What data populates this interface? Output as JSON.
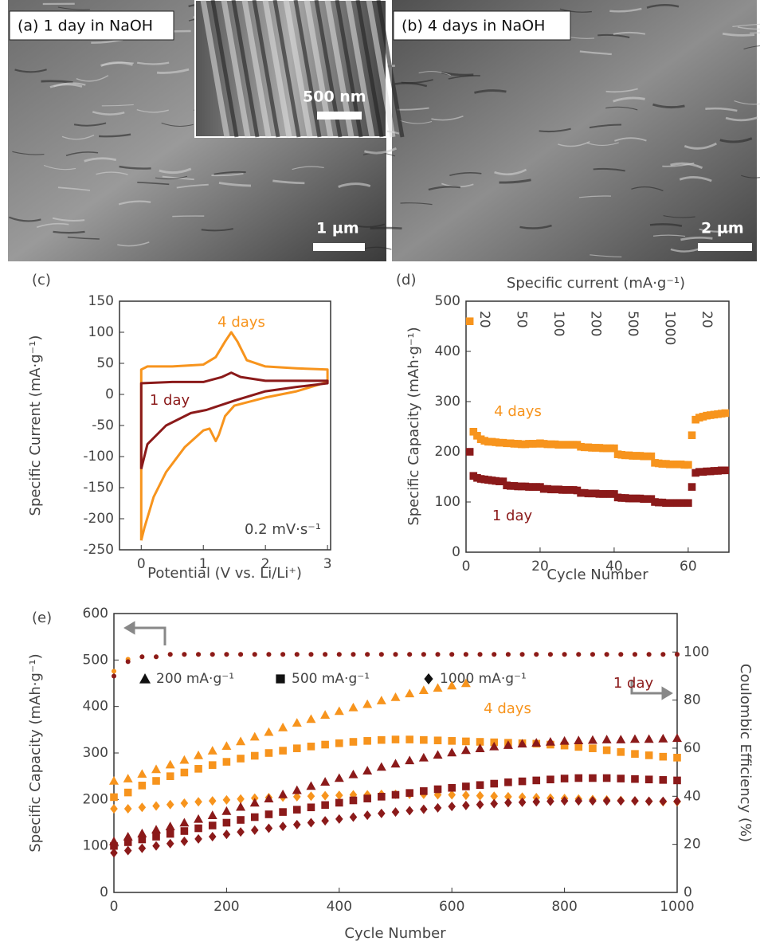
{
  "images": {
    "a": {
      "label": "(a) 1 day in NaOH",
      "scale": "1 µm",
      "inset_scale": "500 nm"
    },
    "b": {
      "label": "(b) 4 days in NaOH",
      "scale": "2 µm"
    }
  },
  "chart_data": [
    {
      "type": "line",
      "title": "(c)",
      "xlabel": "Potential (V vs. Li/Li⁺)",
      "ylabel": "Specific Current (mA·g⁻¹)",
      "xlim": [
        -0.35,
        3.05
      ],
      "xticks": [
        0,
        1,
        2,
        3
      ],
      "ylim": [
        -250,
        150
      ],
      "yticks": [
        -250,
        -200,
        -150,
        -100,
        -50,
        0,
        50,
        100,
        150
      ],
      "annotations": [
        {
          "text": "4 days",
          "color": "#f7941d"
        },
        {
          "text": "1 day",
          "color": "#8b1a1a"
        },
        {
          "text": "0.2 mV·s⁻¹",
          "color": "#444444"
        }
      ],
      "series": [
        {
          "color": "#f7941d",
          "x": [
            0,
            0,
            0.1,
            0.5,
            1.0,
            1.2,
            1.35,
            1.45,
            1.55,
            1.7,
            2.0,
            2.5,
            3.0,
            3.0,
            2.5,
            2.0,
            1.5,
            1.35,
            1.25,
            1.2,
            1.1,
            1.0,
            0.7,
            0.4,
            0.2,
            0.05,
            0
          ],
          "values": [
            -235,
            40,
            45,
            45,
            48,
            60,
            85,
            100,
            85,
            55,
            45,
            42,
            40,
            20,
            5,
            -5,
            -18,
            -35,
            -65,
            -75,
            -55,
            -58,
            -85,
            -125,
            -165,
            -215,
            -235
          ]
        },
        {
          "color": "#8b1a1a",
          "x": [
            0,
            0,
            0.5,
            1.0,
            1.3,
            1.45,
            1.6,
            2.0,
            3.0,
            3.0,
            2.5,
            2.0,
            1.5,
            1.2,
            1.05,
            0.8,
            0.4,
            0.1,
            0
          ],
          "values": [
            -120,
            18,
            20,
            20,
            28,
            35,
            28,
            22,
            22,
            18,
            12,
            5,
            -10,
            -20,
            -25,
            -30,
            -50,
            -80,
            -120
          ]
        }
      ]
    },
    {
      "type": "scatter",
      "title": "(d)",
      "xlabel": "Cycle Number",
      "ylabel": "Specific Capacity (mAh·g⁻¹)",
      "top_label": "Specific current (mA·g⁻¹)",
      "rate_labels": [
        "20",
        "50",
        "100",
        "200",
        "500",
        "1000",
        "20"
      ],
      "xlim": [
        0,
        71
      ],
      "xticks": [
        0,
        20,
        40,
        60
      ],
      "ylim": [
        0,
        500
      ],
      "yticks": [
        0,
        100,
        200,
        300,
        400,
        500
      ],
      "annotations": [
        {
          "text": "4 days",
          "color": "#f7941d"
        },
        {
          "text": "1 day",
          "color": "#8b1a1a"
        }
      ],
      "x": [
        1,
        2,
        3,
        4,
        5,
        6,
        7,
        8,
        9,
        10,
        11,
        12,
        13,
        14,
        15,
        16,
        17,
        18,
        19,
        20,
        21,
        22,
        23,
        24,
        25,
        26,
        27,
        28,
        29,
        30,
        31,
        32,
        33,
        34,
        35,
        36,
        37,
        38,
        39,
        40,
        41,
        42,
        43,
        44,
        45,
        46,
        47,
        48,
        49,
        50,
        51,
        52,
        53,
        54,
        55,
        56,
        57,
        58,
        59,
        60,
        61,
        62,
        63,
        64,
        65,
        66,
        67,
        68,
        69,
        70
      ],
      "series": [
        {
          "color": "#f7941d",
          "marker": "square",
          "values": [
            460,
            240,
            232,
            225,
            222,
            220,
            220,
            219,
            218,
            218,
            217,
            217,
            216,
            216,
            215,
            215,
            216,
            216,
            216,
            217,
            216,
            215,
            215,
            215,
            214,
            214,
            214,
            214,
            214,
            214,
            210,
            209,
            209,
            208,
            208,
            208,
            207,
            207,
            207,
            207,
            195,
            194,
            193,
            193,
            192,
            192,
            192,
            191,
            191,
            191,
            178,
            177,
            176,
            176,
            175,
            175,
            175,
            175,
            174,
            174,
            233,
            264,
            268,
            270,
            272,
            273,
            274,
            275,
            276,
            277
          ]
        },
        {
          "color": "#8b1a1a",
          "marker": "square",
          "values": [
            200,
            152,
            148,
            146,
            145,
            144,
            143,
            142,
            141,
            141,
            133,
            132,
            132,
            131,
            131,
            131,
            130,
            130,
            130,
            130,
            126,
            126,
            125,
            125,
            125,
            124,
            124,
            124,
            124,
            123,
            118,
            118,
            117,
            117,
            117,
            116,
            116,
            116,
            116,
            116,
            109,
            108,
            108,
            107,
            107,
            107,
            107,
            106,
            106,
            106,
            100,
            99,
            99,
            98,
            98,
            98,
            98,
            98,
            98,
            98,
            130,
            158,
            160,
            160,
            161,
            161,
            162,
            162,
            163,
            163
          ]
        }
      ]
    },
    {
      "type": "scatter",
      "title": "(e)",
      "xlabel": "Cycle Number",
      "ylabel": "Specific Capacity (mAh·g⁻¹)",
      "y2label": "Coulombic Efficiency (%)",
      "xlim": [
        0,
        1000
      ],
      "xticks": [
        0,
        200,
        400,
        600,
        800,
        1000
      ],
      "ylim": [
        0,
        600
      ],
      "yticks": [
        0,
        100,
        200,
        300,
        400,
        500,
        600
      ],
      "y2lim": [
        0,
        116
      ],
      "y2ticks": [
        0,
        20,
        40,
        60,
        80,
        100
      ],
      "annotations": [
        {
          "text": "4 days",
          "color": "#f7941d"
        },
        {
          "text": "1 day",
          "color": "#8b1a1a"
        }
      ],
      "marker_legend": [
        {
          "marker": "triangle",
          "label": "200 mA·g⁻¹"
        },
        {
          "marker": "square",
          "label": "500 mA·g⁻¹"
        },
        {
          "marker": "diamond",
          "label": "1000 mA·g⁻¹"
        }
      ],
      "x": [
        0,
        25,
        50,
        75,
        100,
        125,
        150,
        175,
        200,
        225,
        250,
        275,
        300,
        325,
        350,
        375,
        400,
        425,
        450,
        475,
        500,
        525,
        550,
        575,
        600,
        625,
        650,
        675,
        700,
        725,
        750,
        775,
        800,
        825,
        850,
        875,
        900,
        925,
        950,
        975,
        1000
      ],
      "series": [
        {
          "color": "#f7941d",
          "marker": "triangle",
          "values": [
            240,
            245,
            255,
            265,
            275,
            285,
            295,
            305,
            315,
            325,
            335,
            345,
            355,
            365,
            373,
            382,
            390,
            398,
            405,
            413,
            420,
            428,
            435,
            440,
            445,
            450,
            null,
            null,
            null,
            null,
            null,
            null,
            null,
            null,
            null,
            null,
            null,
            null,
            null,
            null,
            null
          ]
        },
        {
          "color": "#f7941d",
          "marker": "square",
          "values": [
            205,
            215,
            230,
            240,
            250,
            258,
            266,
            274,
            281,
            288,
            294,
            300,
            305,
            310,
            314,
            318,
            321,
            324,
            326,
            328,
            329,
            329,
            328,
            327,
            326,
            325,
            324,
            323,
            322,
            321,
            320,
            318,
            316,
            313,
            310,
            306,
            302,
            298,
            295,
            292,
            290
          ]
        },
        {
          "color": "#f7941d",
          "marker": "diamond",
          "values": [
            180,
            180,
            183,
            186,
            189,
            192,
            195,
            197,
            199,
            201,
            203,
            204,
            205,
            206,
            207,
            208,
            209,
            210,
            210,
            211,
            211,
            211,
            211,
            210,
            210,
            209,
            208,
            207,
            206,
            205,
            204,
            203,
            202,
            201,
            200,
            199,
            198,
            197,
            196,
            195,
            195
          ]
        },
        {
          "color": "#8b1a1a",
          "marker": "triangle",
          "values": [
            110,
            120,
            127,
            135,
            142,
            150,
            158,
            166,
            175,
            184,
            193,
            202,
            211,
            220,
            229,
            238,
            246,
            254,
            262,
            270,
            277,
            284,
            290,
            296,
            301,
            306,
            310,
            314,
            317,
            320,
            322,
            324,
            326,
            327,
            328,
            329,
            329,
            330,
            330,
            331,
            332
          ]
        },
        {
          "color": "#8b1a1a",
          "marker": "square",
          "values": [
            100,
            108,
            114,
            120,
            126,
            132,
            138,
            144,
            150,
            156,
            162,
            168,
            173,
            178,
            183,
            188,
            193,
            198,
            202,
            206,
            210,
            214,
            218,
            222,
            225,
            228,
            231,
            234,
            237,
            239,
            241,
            243,
            245,
            246,
            246,
            246,
            245,
            244,
            243,
            242,
            241
          ]
        },
        {
          "color": "#8b1a1a",
          "marker": "diamond",
          "values": [
            85,
            90,
            95,
            100,
            105,
            110,
            115,
            120,
            125,
            130,
            134,
            138,
            142,
            146,
            150,
            154,
            158,
            162,
            166,
            170,
            173,
            176,
            179,
            182,
            185,
            187,
            189,
            191,
            193,
            194,
            195,
            196,
            197,
            197,
            197,
            197,
            197,
            197,
            196,
            196,
            196
          ]
        },
        {
          "color": "#f7941d",
          "marker": "circle",
          "axis": "y2",
          "values": [
            92,
            97,
            98,
            98,
            99,
            99,
            99,
            99,
            99,
            99,
            99,
            99,
            99,
            99,
            99,
            99,
            99,
            99,
            99,
            99,
            99,
            99,
            99,
            99,
            99,
            99,
            99,
            99,
            99,
            99,
            99,
            99,
            99,
            99,
            99,
            99,
            99,
            99,
            99,
            99,
            99
          ]
        },
        {
          "color": "#8b1a1a",
          "marker": "circle",
          "axis": "y2",
          "values": [
            90,
            96,
            98,
            98,
            99,
            99,
            99,
            99,
            99,
            99,
            99,
            99,
            99,
            99,
            99,
            99,
            99,
            99,
            99,
            99,
            99,
            99,
            99,
            99,
            99,
            99,
            99,
            99,
            99,
            99,
            99,
            99,
            99,
            99,
            99,
            99,
            99,
            99,
            99,
            99,
            99
          ]
        }
      ]
    }
  ]
}
